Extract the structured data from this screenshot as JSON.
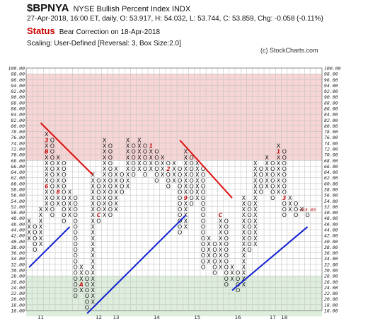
{
  "header": {
    "symbol": "$BPNYA",
    "name": "NYSE Bullish Percent Index  INDX",
    "info": "27-Apr-2018, 16:00 ET, daily, O: 53.917, H: 54.032, L: 53.744, C: 53.859, Chg: -0.058 (-0.11%)",
    "status_label": "Status",
    "status_text": "Bear Correction on 18-Apr-2018",
    "scaling": "Scaling: User-Defined [Reversal: 3, Box Size:2.0]",
    "credit": "(c) StockCharts.com"
  },
  "chart_data": {
    "type": "point-and-figure",
    "box_size": 2.0,
    "reversal": 3,
    "ylim": [
      16,
      100
    ],
    "y_ticks": [
      "100.00",
      "98.00",
      "96.00",
      "94.00",
      "92.00",
      "90.00",
      "88.00",
      "86.00",
      "84.00",
      "82.00",
      "80.00",
      "78.00",
      "76.00",
      "74.00",
      "72.00",
      "70.00",
      "68.00",
      "66.00",
      "64.00",
      "62.00",
      "60.00",
      "58.00",
      "56.00",
      "54.00",
      "52.00",
      "50.00",
      "48.00",
      "46.00",
      "44.00",
      "42.00",
      "40.00",
      "38.00",
      "36.00",
      "34.00",
      "32.00",
      "30.00",
      "28.00",
      "26.00",
      "24.00",
      "22.00",
      "20.00",
      "18.00",
      "16.00"
    ],
    "x_labels": [
      {
        "col": 2,
        "label": "11"
      },
      {
        "col": 12,
        "label": "12"
      },
      {
        "col": 15,
        "label": "13"
      },
      {
        "col": 22,
        "label": "14"
      },
      {
        "col": 29,
        "label": "15"
      },
      {
        "col": 36,
        "label": "16"
      },
      {
        "col": 42,
        "label": "17"
      },
      {
        "col": 44,
        "label": "18"
      }
    ],
    "zones": [
      {
        "from": 70,
        "to": 100,
        "color": "#f7d5d5",
        "name": "overbought"
      },
      {
        "from": 16,
        "to": 30,
        "color": "#ddeedd",
        "name": "oversold"
      }
    ],
    "columns": [
      {
        "t": "X",
        "lo": 42,
        "hi": 50
      },
      {
        "t": "O",
        "lo": 38,
        "hi": 48
      },
      {
        "t": "X",
        "lo": 40,
        "hi": 54
      },
      {
        "t": "X",
        "lo": 52,
        "hi": 80
      },
      {
        "t": "O",
        "lo": 50,
        "hi": 78
      },
      {
        "t": "X",
        "lo": 54,
        "hi": 72
      },
      {
        "t": "O",
        "lo": 48,
        "hi": 70
      },
      {
        "t": "X",
        "lo": 50,
        "hi": 60
      },
      {
        "t": "O",
        "lo": 22,
        "hi": 58
      },
      {
        "t": "X",
        "lo": 24,
        "hi": 34
      },
      {
        "t": "O",
        "lo": 18,
        "hi": 32
      },
      {
        "t": "X",
        "lo": 20,
        "hi": 66
      },
      {
        "t": "O",
        "lo": 48,
        "hi": 64
      },
      {
        "t": "X",
        "lo": 50,
        "hi": 78
      },
      {
        "t": "O",
        "lo": 50,
        "hi": 76
      },
      {
        "t": "X",
        "lo": 52,
        "hi": 68
      },
      {
        "t": "O",
        "lo": 58,
        "hi": 66
      },
      {
        "t": "X",
        "lo": 60,
        "hi": 78
      },
      {
        "t": "O",
        "lo": 64,
        "hi": 76
      },
      {
        "t": "X",
        "lo": 66,
        "hi": 78
      },
      {
        "t": "O",
        "lo": 64,
        "hi": 76
      },
      {
        "t": "X",
        "lo": 66,
        "hi": 76
      },
      {
        "t": "O",
        "lo": 62,
        "hi": 74
      },
      {
        "t": "X",
        "lo": 64,
        "hi": 72
      },
      {
        "t": "O",
        "lo": 60,
        "hi": 70
      },
      {
        "t": "X",
        "lo": 62,
        "hi": 70
      },
      {
        "t": "O",
        "lo": 44,
        "hi": 68
      },
      {
        "t": "X",
        "lo": 46,
        "hi": 74
      },
      {
        "t": "O",
        "lo": 54,
        "hi": 72
      },
      {
        "t": "X",
        "lo": 56,
        "hi": 70
      },
      {
        "t": "O",
        "lo": 32,
        "hi": 68
      },
      {
        "t": "X",
        "lo": 34,
        "hi": 44
      },
      {
        "t": "O",
        "lo": 30,
        "hi": 42
      },
      {
        "t": "X",
        "lo": 32,
        "hi": 52
      },
      {
        "t": "O",
        "lo": 26,
        "hi": 50
      },
      {
        "t": "X",
        "lo": 28,
        "hi": 34
      },
      {
        "t": "O",
        "lo": 24,
        "hi": 32
      },
      {
        "t": "X",
        "lo": 26,
        "hi": 58
      },
      {
        "t": "O",
        "lo": 38,
        "hi": 56
      },
      {
        "t": "X",
        "lo": 40,
        "hi": 70
      },
      {
        "t": "O",
        "lo": 58,
        "hi": 68
      },
      {
        "t": "X",
        "lo": 60,
        "hi": 72
      },
      {
        "t": "O",
        "lo": 56,
        "hi": 70
      },
      {
        "t": "X",
        "lo": 58,
        "hi": 76
      },
      {
        "t": "O",
        "lo": 50,
        "hi": 74
      },
      {
        "t": "X",
        "lo": 52,
        "hi": 58
      },
      {
        "t": "O",
        "lo": 50,
        "hi": 56
      },
      {
        "t": "X",
        "lo": 52,
        "hi": 54
      },
      {
        "t": "O",
        "lo": 50,
        "hi": 52
      }
    ],
    "month_markers": [
      {
        "col": 0,
        "v": 38,
        "m": "7"
      },
      {
        "col": 0,
        "v": 50,
        "m": "8"
      },
      {
        "col": 3,
        "v": 76,
        "m": "3"
      },
      {
        "col": 3,
        "v": 72,
        "m": "B"
      },
      {
        "col": 3,
        "v": 60,
        "m": "6"
      },
      {
        "col": 5,
        "v": 58,
        "m": "8"
      },
      {
        "col": 9,
        "v": 26,
        "m": "A"
      },
      {
        "col": 12,
        "v": 50,
        "m": "C"
      },
      {
        "col": 16,
        "v": 78,
        "m": "2"
      },
      {
        "col": 18,
        "v": 76,
        "m": "8"
      },
      {
        "col": 21,
        "v": 74,
        "m": "1"
      },
      {
        "col": 24,
        "v": 66,
        "m": "2"
      },
      {
        "col": 27,
        "v": 56,
        "m": "9"
      },
      {
        "col": 32,
        "v": 50,
        "m": "B"
      },
      {
        "col": 33,
        "v": 50,
        "m": "C"
      },
      {
        "col": 37,
        "v": 68,
        "m": "5"
      },
      {
        "col": 39,
        "v": 72,
        "m": "1"
      },
      {
        "col": 43,
        "v": 72,
        "m": "1"
      },
      {
        "col": 44,
        "v": 56,
        "m": "3"
      }
    ],
    "current_value_label": "<53.85",
    "trendlines": [
      {
        "kind": "bearish-resistance",
        "color": "#e01010",
        "from": {
          "col": 2,
          "v": 82
        },
        "to": {
          "col": 11,
          "v": 64
        }
      },
      {
        "kind": "bearish-resistance",
        "color": "#e01010",
        "from": {
          "col": 26,
          "v": 76
        },
        "to": {
          "col": 35,
          "v": 56
        }
      },
      {
        "kind": "bullish-support",
        "color": "#1020d0",
        "from": {
          "col": 0,
          "v": 32
        },
        "to": {
          "col": 7,
          "v": 46
        }
      },
      {
        "kind": "bullish-support",
        "color": "#1020d0",
        "from": {
          "col": 10,
          "v": 16
        },
        "to": {
          "col": 27,
          "v": 50
        }
      },
      {
        "kind": "bullish-support",
        "color": "#1020d0",
        "from": {
          "col": 35,
          "v": 24
        },
        "to": {
          "col": 48,
          "v": 46
        }
      }
    ]
  }
}
